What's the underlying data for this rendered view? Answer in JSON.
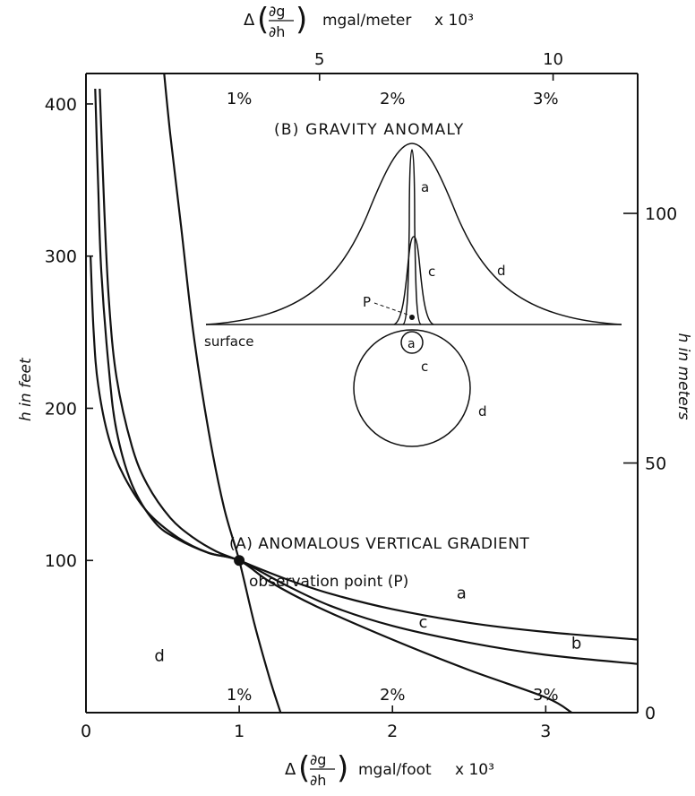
{
  "chart_data": {
    "type": "line",
    "title": "(A) ANOMALOUS VERTICAL GRADIENT",
    "point_label": "observation point (P)",
    "observation_point": {
      "x": 1.0,
      "y": 100
    },
    "axes": {
      "bottom": {
        "label_prefix": "Δ",
        "label_num": "∂g",
        "label_den": "∂h",
        "label_unit": "mgal/foot",
        "label_scale": "x 10³",
        "range": [
          0,
          3.6
        ],
        "ticks": [
          {
            "value": 0,
            "label": "0"
          },
          {
            "value": 1,
            "label": "1"
          },
          {
            "value": 2,
            "label": "2"
          },
          {
            "value": 3,
            "label": "3"
          }
        ],
        "percent_labels": [
          {
            "value": 1,
            "label": "1%"
          },
          {
            "value": 2,
            "label": "2%"
          },
          {
            "value": 3,
            "label": "3%"
          }
        ]
      },
      "top": {
        "label_prefix": "Δ",
        "label_num": "∂g",
        "label_den": "∂h",
        "label_unit": "mgal/meter",
        "label_scale": "x 10³",
        "ticks": [
          {
            "value": 5,
            "label": "5"
          },
          {
            "value": 10,
            "label": "10"
          }
        ],
        "percent_labels": [
          {
            "value": 1,
            "label": "1%"
          },
          {
            "value": 2,
            "label": "2%"
          },
          {
            "value": 3,
            "label": "3%"
          }
        ]
      },
      "left": {
        "label": "h in feet",
        "range": [
          0,
          420
        ],
        "ticks": [
          {
            "value": 100,
            "label": "100"
          },
          {
            "value": 200,
            "label": "200"
          },
          {
            "value": 300,
            "label": "300"
          },
          {
            "value": 400,
            "label": "400"
          }
        ]
      },
      "right": {
        "label": "h in meters",
        "ticks": [
          {
            "value": 0,
            "label": "0"
          },
          {
            "value": 50,
            "label": "50"
          },
          {
            "value": 100,
            "label": "100"
          }
        ]
      }
    },
    "series": [
      {
        "name": "a",
        "points": [
          [
            0.09,
            410
          ],
          [
            0.12,
            330
          ],
          [
            0.15,
            270
          ],
          [
            0.2,
            220
          ],
          [
            0.3,
            175
          ],
          [
            0.4,
            150
          ],
          [
            0.55,
            128
          ],
          [
            0.7,
            115
          ],
          [
            0.85,
            106
          ],
          [
            1.0,
            100
          ],
          [
            1.3,
            88
          ],
          [
            1.6,
            78
          ],
          [
            2.0,
            68
          ],
          [
            2.5,
            59
          ],
          [
            3.0,
            53
          ],
          [
            3.6,
            48
          ]
        ]
      },
      {
        "name": "b",
        "points": [
          [
            0.06,
            410
          ],
          [
            0.08,
            345
          ],
          [
            0.1,
            290
          ],
          [
            0.15,
            225
          ],
          [
            0.2,
            185
          ],
          [
            0.3,
            150
          ],
          [
            0.45,
            125
          ],
          [
            0.6,
            114
          ],
          [
            0.8,
            105
          ],
          [
            1.0,
            100
          ],
          [
            1.3,
            84
          ],
          [
            1.6,
            70
          ],
          [
            2.0,
            57
          ],
          [
            2.5,
            46
          ],
          [
            3.0,
            38
          ],
          [
            3.6,
            32
          ]
        ]
      },
      {
        "name": "c",
        "points": [
          [
            0.03,
            300
          ],
          [
            0.05,
            250
          ],
          [
            0.08,
            215
          ],
          [
            0.15,
            180
          ],
          [
            0.25,
            155
          ],
          [
            0.4,
            132
          ],
          [
            0.6,
            115
          ],
          [
            0.8,
            105
          ],
          [
            1.0,
            100
          ],
          [
            1.2,
            86
          ],
          [
            1.5,
            70
          ],
          [
            2.0,
            48
          ],
          [
            2.5,
            28
          ],
          [
            3.0,
            10
          ],
          [
            3.17,
            0
          ]
        ]
      },
      {
        "name": "d",
        "points": [
          [
            0.51,
            420
          ],
          [
            0.55,
            380
          ],
          [
            0.62,
            320
          ],
          [
            0.7,
            250
          ],
          [
            0.8,
            185
          ],
          [
            0.9,
            135
          ],
          [
            1.0,
            100
          ],
          [
            1.1,
            58
          ],
          [
            1.2,
            22
          ],
          [
            1.27,
            0
          ]
        ]
      }
    ],
    "curve_labels": [
      {
        "series": "a",
        "x": 2.45,
        "y": 75
      },
      {
        "series": "b",
        "x": 3.2,
        "y": 42
      },
      {
        "series": "c",
        "x": 2.2,
        "y": 56
      },
      {
        "series": "d",
        "x": 0.48,
        "y": 34
      }
    ],
    "inset": {
      "title": "(B) GRAVITY ANOMALY",
      "surface_label": "surface",
      "point_label": "P",
      "curve_labels": [
        "a",
        "c",
        "d"
      ],
      "body_labels": [
        "a",
        "c",
        "d"
      ]
    }
  }
}
